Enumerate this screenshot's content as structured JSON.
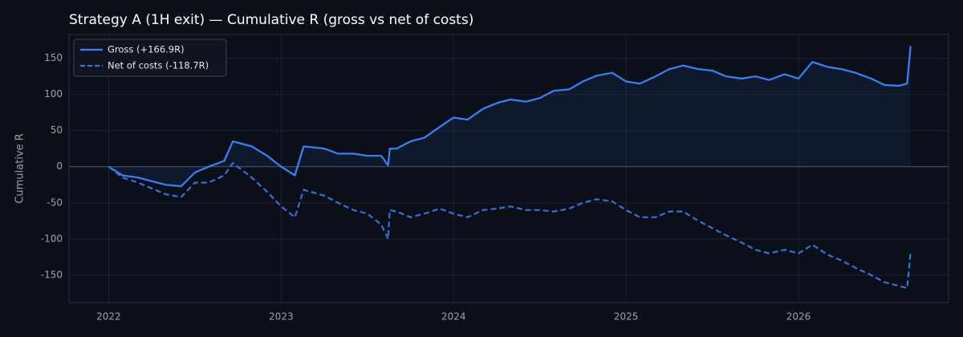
{
  "chart_data": {
    "type": "line",
    "title": "Strategy A (1H exit) — Cumulative R (gross vs net of costs)",
    "y_label": "Cumulative R",
    "x": [
      2022.0,
      2022.08,
      2022.17,
      2022.25,
      2022.33,
      2022.42,
      2022.5,
      2022.58,
      2022.67,
      2022.72,
      2022.83,
      2022.92,
      2023.0,
      2023.08,
      2023.13,
      2023.25,
      2023.33,
      2023.42,
      2023.5,
      2023.58,
      2023.62,
      2023.63,
      2023.67,
      2023.75,
      2023.83,
      2023.92,
      2024.0,
      2024.08,
      2024.17,
      2024.25,
      2024.33,
      2024.42,
      2024.5,
      2024.58,
      2024.67,
      2024.75,
      2024.83,
      2024.92,
      2025.0,
      2025.08,
      2025.17,
      2025.25,
      2025.33,
      2025.42,
      2025.5,
      2025.58,
      2025.67,
      2025.75,
      2025.83,
      2025.92,
      2026.0,
      2026.08,
      2026.17,
      2026.25,
      2026.33,
      2026.42,
      2026.5,
      2026.58,
      2026.63,
      2026.65
    ],
    "series": [
      {
        "name": "Gross (+166.9R)",
        "color": "#3b82f6",
        "dash": false,
        "fill": true,
        "values": [
          0,
          -12,
          -15,
          -20,
          -25,
          -27,
          -8,
          0,
          8,
          35,
          28,
          15,
          0,
          -12,
          28,
          25,
          18,
          18,
          15,
          15,
          2,
          25,
          25,
          35,
          40,
          55,
          68,
          65,
          80,
          88,
          93,
          90,
          95,
          105,
          107,
          118,
          126,
          130,
          118,
          115,
          125,
          135,
          140,
          135,
          133,
          125,
          122,
          125,
          120,
          128,
          122,
          145,
          138,
          135,
          130,
          122,
          113,
          112,
          115,
          166.9
        ]
      },
      {
        "name": "Net of costs (-118.7R)",
        "color": "#3a6fd8",
        "dash": true,
        "fill": false,
        "values": [
          0,
          -15,
          -22,
          -30,
          -38,
          -42,
          -22,
          -22,
          -12,
          5,
          -15,
          -35,
          -55,
          -70,
          -32,
          -40,
          -50,
          -60,
          -65,
          -80,
          -100,
          -60,
          -62,
          -70,
          -65,
          -58,
          -65,
          -70,
          -60,
          -58,
          -55,
          -60,
          -60,
          -62,
          -58,
          -50,
          -45,
          -48,
          -60,
          -70,
          -70,
          -62,
          -62,
          -75,
          -85,
          -95,
          -105,
          -115,
          -120,
          -115,
          -120,
          -108,
          -122,
          -130,
          -140,
          -150,
          -160,
          -165,
          -168,
          -118.7
        ]
      }
    ],
    "xlim": [
      2021.77,
      2026.87
    ],
    "xticks": [
      2022,
      2023,
      2024,
      2025,
      2026
    ],
    "ylim": [
      -188,
      183
    ],
    "yticks": [
      -150,
      -100,
      -50,
      0,
      50,
      100,
      150
    ],
    "grid": true,
    "legend": "upper left"
  }
}
